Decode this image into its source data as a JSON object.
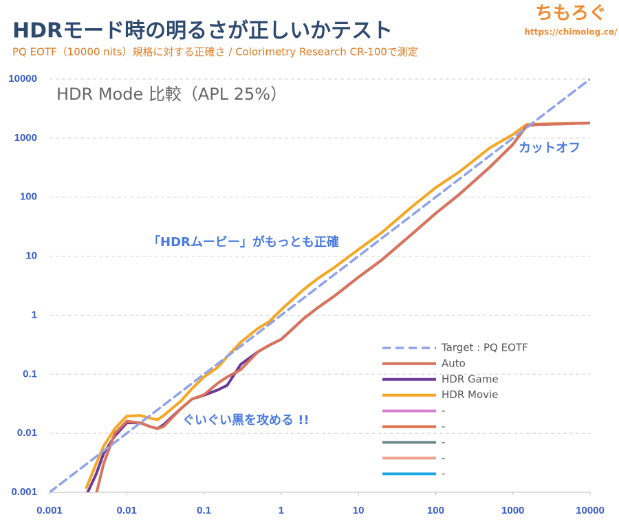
{
  "brand": {
    "name": "ちもろぐ",
    "url": "https://chimolog.co/"
  },
  "chart_data": {
    "type": "line",
    "title": "HDRモード時の明るさが正しいかテスト",
    "subtitle": "PQ EOTF（10000 nits）規格に対する正確さ / Colorimetry Research CR-100で測定",
    "chart_label": "HDR Mode 比較（APL 25%）",
    "annotations": [
      "「HDRムービー」がもっとも正確",
      "カットオフ",
      "ぐいぐい黒を攻める !!"
    ],
    "log_x": true,
    "log_y": true,
    "grid": true,
    "legend": "lower-right",
    "x": [
      0.001,
      0.003,
      0.004,
      0.005,
      0.007,
      0.01,
      0.015,
      0.02,
      0.025,
      0.03,
      0.05,
      0.07,
      0.1,
      0.15,
      0.2,
      0.3,
      0.5,
      0.7,
      1,
      2,
      3,
      5,
      10,
      20,
      50,
      100,
      200,
      500,
      1000,
      1500,
      2000,
      5000,
      10000
    ],
    "xlim": [
      0.001,
      10000
    ],
    "ylim": [
      0.001,
      10000
    ],
    "xticks": [
      0.001,
      0.01,
      0.1,
      1,
      10,
      100,
      1000,
      10000
    ],
    "yticks": [
      0.001,
      0.01,
      0.1,
      1,
      10,
      100,
      1000,
      10000
    ],
    "series": [
      {
        "name": "Target : PQ EOTF",
        "color": "#8fa3ea",
        "dashed": true,
        "values": [
          0.001,
          0.003,
          0.004,
          0.005,
          0.007,
          0.01,
          0.015,
          0.02,
          0.025,
          0.03,
          0.05,
          0.07,
          0.1,
          0.15,
          0.2,
          0.3,
          0.5,
          0.7,
          1,
          2,
          3,
          5,
          10,
          20,
          50,
          100,
          200,
          500,
          1000,
          1500,
          2000,
          5000,
          10000
        ]
      },
      {
        "name": "Auto",
        "color": "#d9735a",
        "values": [
          null,
          null,
          0.0009,
          0.003,
          0.01,
          0.016,
          0.015,
          0.013,
          0.012,
          0.013,
          0.026,
          0.038,
          0.045,
          0.07,
          0.09,
          0.12,
          0.24,
          0.31,
          0.39,
          0.9,
          1.35,
          2.16,
          4.4,
          8.6,
          24,
          53,
          110,
          320,
          780,
          1600,
          1700,
          1750,
          1800
        ]
      },
      {
        "name": "HDR Game",
        "color": "#6b3a99",
        "values": [
          null,
          0.0009,
          0.002,
          0.0045,
          0.009,
          0.015,
          0.015,
          0.013,
          0.012,
          0.014,
          0.026,
          0.038,
          0.044,
          0.054,
          0.065,
          0.147,
          0.24,
          0.31,
          0.39,
          0.9,
          1.35,
          2.16,
          4.4,
          8.6,
          24,
          53,
          110,
          320,
          780,
          1600,
          1700,
          1750,
          1800
        ]
      },
      {
        "name": "HDR Movie",
        "color": "#f5a623",
        "values": [
          null,
          0.0012,
          0.003,
          0.006,
          0.012,
          0.0195,
          0.02,
          0.018,
          0.017,
          0.02,
          0.035,
          0.057,
          0.09,
          0.13,
          0.2,
          0.35,
          0.6,
          0.78,
          1.24,
          2.8,
          4.2,
          6.6,
          13,
          25,
          70,
          145,
          265,
          680,
          1150,
          1700,
          1720,
          1780,
          1800
        ]
      },
      {
        "name": "-",
        "color": "#d77fd0",
        "values": [
          null,
          null,
          null,
          null,
          null,
          null,
          null,
          null,
          null,
          null,
          null,
          null,
          null,
          null,
          null,
          null,
          null,
          null,
          null,
          null,
          null,
          null,
          null,
          null,
          null,
          null,
          null,
          null,
          null,
          null,
          null,
          null,
          null
        ]
      },
      {
        "name": "-",
        "color": "#e0704a",
        "values": [
          null,
          null,
          null,
          null,
          null,
          null,
          null,
          null,
          null,
          null,
          null,
          null,
          null,
          null,
          null,
          null,
          null,
          null,
          null,
          null,
          null,
          null,
          null,
          null,
          null,
          null,
          null,
          null,
          null,
          null,
          null,
          null,
          null
        ]
      },
      {
        "name": "-",
        "color": "#6d8a8a",
        "values": [
          null,
          null,
          null,
          null,
          null,
          null,
          null,
          null,
          null,
          null,
          null,
          null,
          null,
          null,
          null,
          null,
          null,
          null,
          null,
          null,
          null,
          null,
          null,
          null,
          null,
          null,
          null,
          null,
          null,
          null,
          null,
          null,
          null
        ]
      },
      {
        "name": "-",
        "color": "#eba08c",
        "values": [
          null,
          null,
          null,
          null,
          null,
          null,
          null,
          null,
          null,
          null,
          null,
          null,
          null,
          null,
          null,
          null,
          null,
          null,
          null,
          null,
          null,
          null,
          null,
          null,
          null,
          null,
          null,
          null,
          null,
          null,
          null,
          null,
          null
        ]
      },
      {
        "name": "-",
        "color": "#1aa7e0",
        "values": [
          null,
          null,
          null,
          null,
          null,
          null,
          null,
          null,
          null,
          null,
          null,
          null,
          null,
          null,
          null,
          null,
          null,
          null,
          null,
          null,
          null,
          null,
          null,
          null,
          null,
          null,
          null,
          null,
          null,
          null,
          null,
          null,
          null
        ]
      }
    ]
  }
}
